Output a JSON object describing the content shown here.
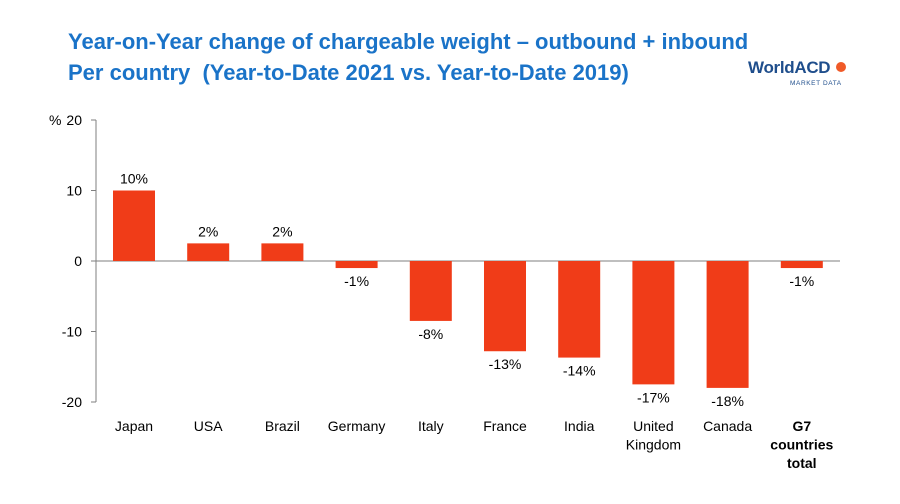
{
  "title_lines": [
    "Year-on-Year change of chargeable weight – outbound + inbound",
    "Per country  (Year-to-Date 2021 vs. Year-to-Date 2019)"
  ],
  "logo": {
    "word": "WorldACD",
    "sub": "MARKET DATA"
  },
  "chart_data": {
    "type": "bar",
    "title": "Year-on-Year change of chargeable weight – outbound + inbound Per country  (Year-to-Date 2021 vs. Year-to-Date 2019)",
    "ylabel": "%",
    "ylim": [
      -20,
      20
    ],
    "yticks": [
      20,
      10,
      0,
      -10,
      -20
    ],
    "grid": false,
    "categories": [
      [
        "Japan"
      ],
      [
        "USA"
      ],
      [
        "Brazil"
      ],
      [
        "Germany"
      ],
      [
        "Italy"
      ],
      [
        "France"
      ],
      [
        "India"
      ],
      [
        "United",
        "Kingdom"
      ],
      [
        "Canada"
      ],
      [
        "G7",
        "countries",
        "total"
      ]
    ],
    "bold_categories": [
      9
    ],
    "values": [
      10,
      2.5,
      2.5,
      -1,
      -8.5,
      -12.8,
      -13.7,
      -17.5,
      -18,
      -1
    ],
    "data_labels": [
      "10%",
      "2%",
      "2%",
      "-1%",
      "-8%",
      "-13%",
      "-14%",
      "-17%",
      "-18%",
      "-1%"
    ],
    "bar_color": "#f03c18"
  }
}
